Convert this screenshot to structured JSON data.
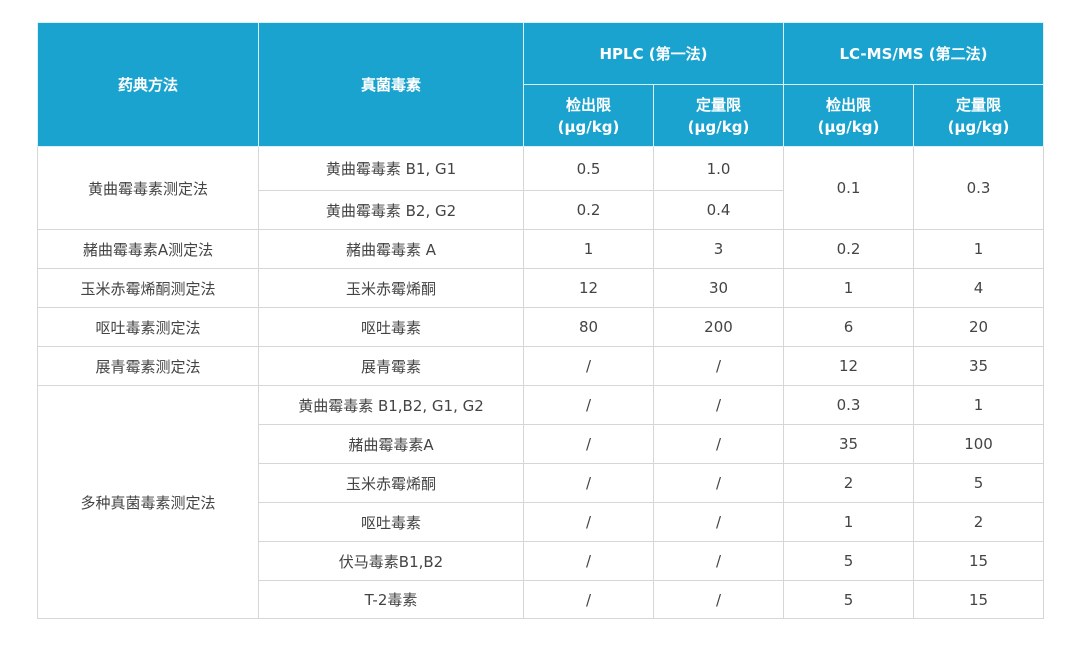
{
  "header": {
    "method": "药典方法",
    "toxin": "真菌毒素",
    "hplc": "HPLC (第一法)",
    "lcms": "LC-MS/MS (第二法)",
    "lod": "检出限",
    "loq": "定量限",
    "unit": "(μg/kg)"
  },
  "colors": {
    "header_bg": "#1ba3cf",
    "header_text": "#ffffff",
    "border": "#d6d6d6"
  },
  "rows": [
    {
      "method": "黄曲霉毒素测定法",
      "toxin": "黄曲霉毒素 B1, G1",
      "hplc_lod": "0.5",
      "hplc_loq": "1.0",
      "lc_lod": "0.1",
      "lc_loq": "0.3"
    },
    {
      "toxin": "黄曲霉毒素 B2, G2",
      "hplc_lod": "0.2",
      "hplc_loq": "0.4"
    },
    {
      "method": "赭曲霉毒素A测定法",
      "toxin": "赭曲霉毒素 A",
      "hplc_lod": "1",
      "hplc_loq": "3",
      "lc_lod": "0.2",
      "lc_loq": "1"
    },
    {
      "method": "玉米赤霉烯酮测定法",
      "toxin": "玉米赤霉烯酮",
      "hplc_lod": "12",
      "hplc_loq": "30",
      "lc_lod": "1",
      "lc_loq": "4"
    },
    {
      "method": "呕吐毒素测定法",
      "toxin": "呕吐毒素",
      "hplc_lod": "80",
      "hplc_loq": "200",
      "lc_lod": "6",
      "lc_loq": "20"
    },
    {
      "method": "展青霉素测定法",
      "toxin": "展青霉素",
      "hplc_lod": "/",
      "hplc_loq": "/",
      "lc_lod": "12",
      "lc_loq": "35"
    },
    {
      "method": "多种真菌毒素测定法",
      "toxin": "黄曲霉毒素 B1,B2, G1, G2",
      "hplc_lod": "/",
      "hplc_loq": "/",
      "lc_lod": "0.3",
      "lc_loq": "1"
    },
    {
      "toxin": "赭曲霉毒素A",
      "hplc_lod": "/",
      "hplc_loq": "/",
      "lc_lod": "35",
      "lc_loq": "100"
    },
    {
      "toxin": "玉米赤霉烯酮",
      "hplc_lod": "/",
      "hplc_loq": "/",
      "lc_lod": "2",
      "lc_loq": "5"
    },
    {
      "toxin": "呕吐毒素",
      "hplc_lod": "/",
      "hplc_loq": "/",
      "lc_lod": "1",
      "lc_loq": "2"
    },
    {
      "toxin": "伏马毒素B1,B2",
      "hplc_lod": "/",
      "hplc_loq": "/",
      "lc_lod": "5",
      "lc_loq": "15"
    },
    {
      "toxin": "T-2毒素",
      "hplc_lod": "/",
      "hplc_loq": "/",
      "lc_lod": "5",
      "lc_loq": "15"
    }
  ]
}
